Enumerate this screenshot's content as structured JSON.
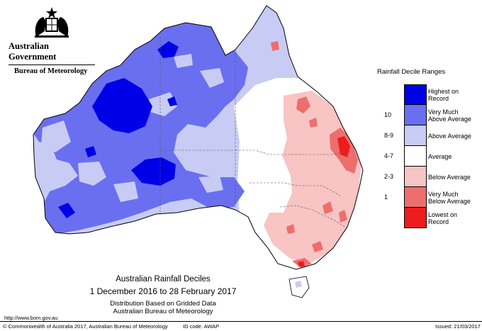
{
  "header": {
    "government": "Australian Government",
    "bureau": "Bureau of Meteorology"
  },
  "legend": {
    "title": "Rainfall Decile Ranges",
    "entries": [
      {
        "code": "",
        "label": "Highest on Record",
        "color": "#0000e6"
      },
      {
        "code": "10",
        "label": "Very Much Above Average",
        "color": "#6a6ff0"
      },
      {
        "code": "8-9",
        "label": "Above Average",
        "color": "#c8ccf4"
      },
      {
        "code": "4-7",
        "label": "Average",
        "color": "#ffffff"
      },
      {
        "code": "2-3",
        "label": "Below Average",
        "color": "#f8c4c4"
      },
      {
        "code": "1",
        "label": "Very Much Below Average",
        "color": "#ee6e6e"
      },
      {
        "code": "",
        "label": "Lowest on Record",
        "color": "#ee1c1c"
      }
    ]
  },
  "map": {
    "title": "Australian Rainfall Deciles",
    "period": "1 December 2016 to 28 February 2017",
    "note": "Distribution Based on Gridded Data",
    "source": "Australian Bureau of Meteorology"
  },
  "footer": {
    "url": "http://www.bom.gov.au",
    "copyright": "© Commonwealth of Australia 2017, Australian Bureau of Meteorology",
    "id_code": "ID code: AWAP",
    "issued": "Issued: 21/03/2017"
  }
}
